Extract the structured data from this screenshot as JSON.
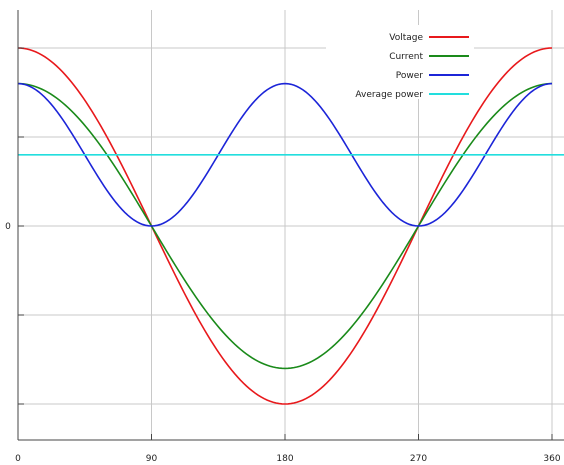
{
  "chart_data": {
    "type": "line",
    "title": "",
    "xlabel": "",
    "ylabel": "",
    "xlim": [
      0,
      360
    ],
    "ylim": [
      -1.2,
      1.2
    ],
    "x_ticks": [
      0,
      90,
      180,
      270,
      360
    ],
    "x_tick_labels": [
      "0",
      "90",
      "180",
      "270",
      "360"
    ],
    "y_ticks": [
      -1,
      -0.5,
      0,
      0.5,
      1
    ],
    "y_tick_labels": [
      "",
      "",
      "0",
      "",
      ""
    ],
    "grid": true,
    "legend_position": "top-right",
    "series": [
      {
        "name": "Voltage",
        "color": "#e8191c",
        "function": "voltage",
        "amplitude": 1.0
      },
      {
        "name": "Current",
        "color": "#1a8a1a",
        "function": "current",
        "amplitude": 0.8
      },
      {
        "name": "Power",
        "color": "#1c25d8",
        "function": "power",
        "amplitude": 0.8
      },
      {
        "name": "Average power",
        "color": "#22dede",
        "function": "average",
        "value": 0.4
      }
    ]
  }
}
